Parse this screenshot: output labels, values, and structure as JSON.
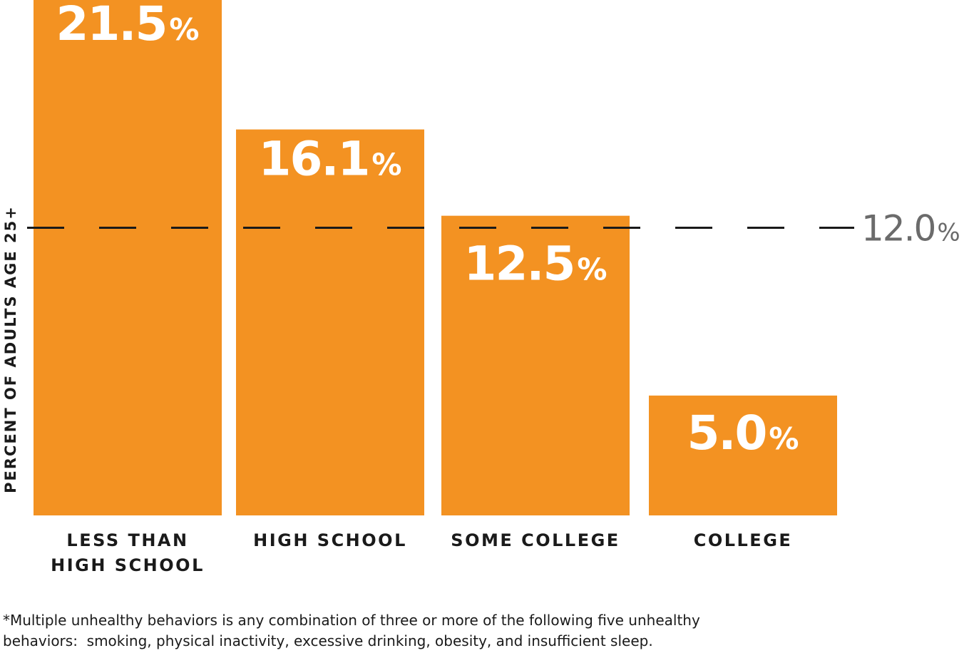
{
  "chart_data": {
    "type": "bar",
    "categories": [
      [
        "LESS THAN",
        "HIGH SCHOOL"
      ],
      [
        "HIGH SCHOOL"
      ],
      [
        "SOME COLLEGE"
      ],
      [
        "COLLEGE"
      ]
    ],
    "values": [
      21.5,
      16.1,
      12.5,
      5.0
    ],
    "value_labels": [
      "21.5",
      "16.1",
      "12.5",
      "5.0"
    ],
    "value_unit": "%",
    "ylabel": "PERCENT OF ADULTS AGE 25+",
    "ylim": [
      0,
      21.5
    ],
    "reference_line": {
      "value": 12.0,
      "label": "12.0",
      "unit": "%",
      "style": "dashed"
    },
    "grid": false,
    "colors": {
      "bar": "#F39222",
      "bar_text": "#FFFFFF",
      "reference_line": "#1A1A1A",
      "reference_text": "#6B6B6B"
    }
  },
  "footnote": {
    "lines": [
      "*Multiple unhealthy behaviors is any combination of three or more of the following five unhealthy",
      "behaviors:  smoking, physical inactivity, excessive drinking, obesity, and insufficient sleep."
    ]
  }
}
